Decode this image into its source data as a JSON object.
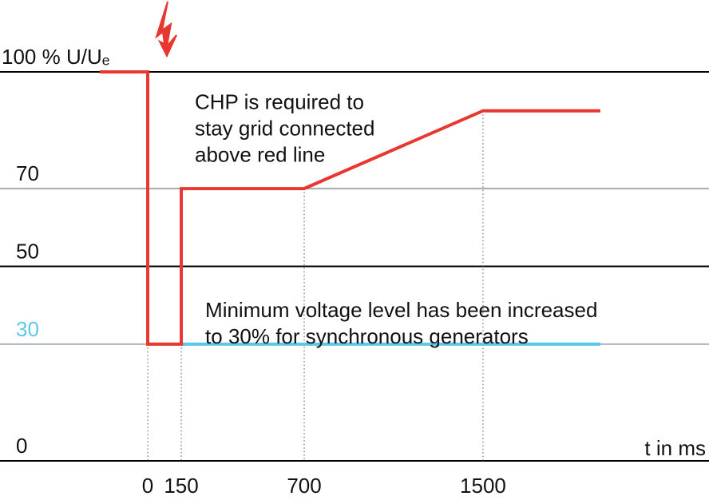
{
  "chart_data": {
    "type": "line",
    "xlabel": "t in ms",
    "xlim": [
      -661,
      2511
    ],
    "xticks": [
      0,
      150,
      700,
      1500
    ],
    "ylim": [
      0,
      100
    ],
    "yticks": [
      0,
      30,
      50,
      {
        "value": 100,
        "label": "100 % U/Uₑ"
      },
      70
    ],
    "grid": true,
    "grid_colors": [
      "#000000",
      "#aab4bc",
      "#000000",
      "#000000",
      "#a9a9a9"
    ],
    "series": [
      {
        "color": "#e8372f",
        "x": [
          -215,
          0,
          0,
          150,
          150,
          700,
          1500,
          2025
        ],
        "values": [
          100,
          100,
          30,
          30,
          70,
          70,
          90,
          90
        ]
      },
      {
        "color": "#5bc8e8",
        "x": [
          150,
          2025
        ],
        "values": [
          30,
          30
        ]
      }
    ],
    "tick_label_color_from_series": {
      "tick": 1,
      "series": 1
    },
    "annotations": [
      {
        "lines": [
          "CHP is required to",
          "stay grid connected",
          "above red line"
        ],
        "x": 700,
        "y": 90
      },
      {
        "lines": [
          "Minimum voltage level has been increased",
          "to 30% for synchronous generators"
        ],
        "x": 150,
        "y": 37
      }
    ]
  }
}
